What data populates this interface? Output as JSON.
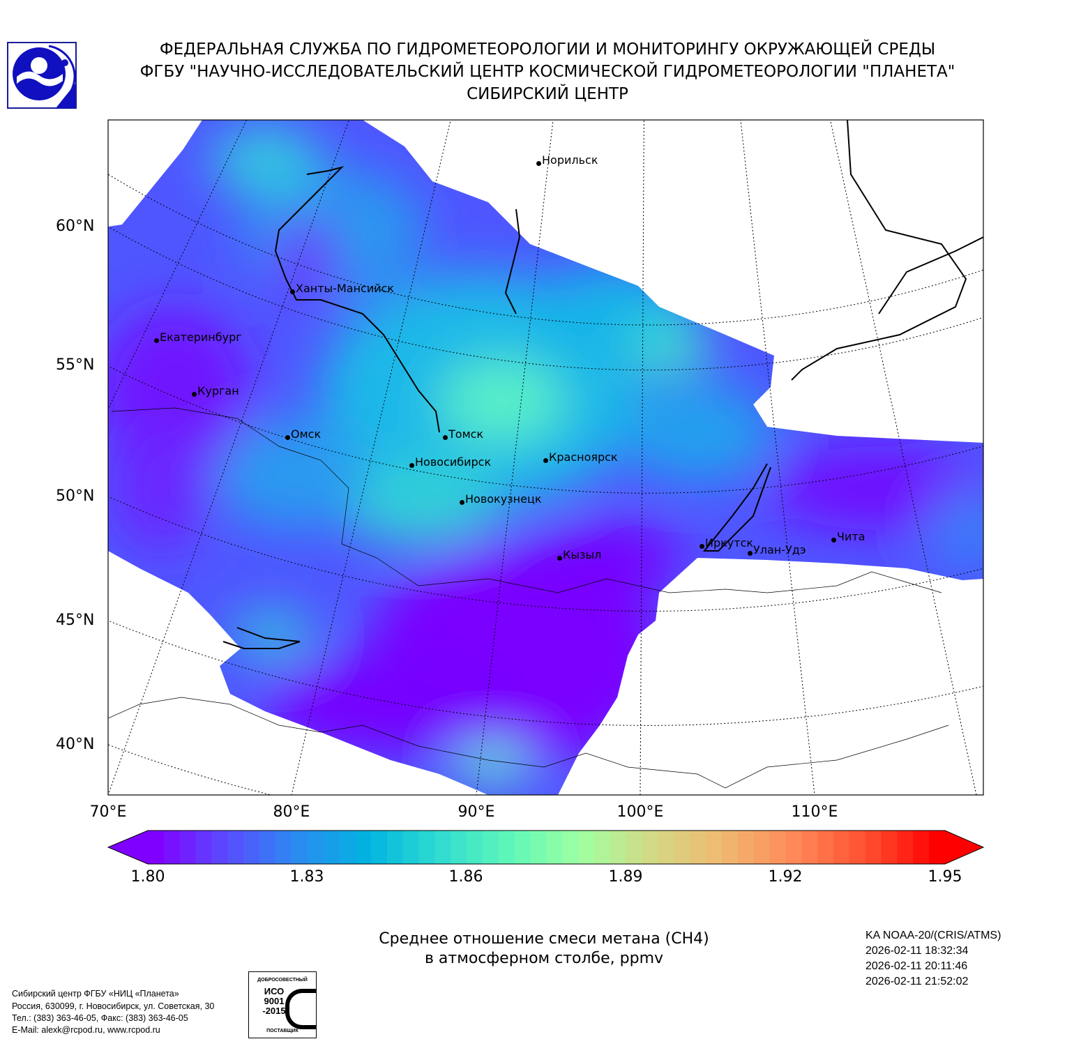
{
  "header": {
    "line1": "ФЕДЕРАЛЬНАЯ СЛУЖБА ПО ГИДРОМЕТЕОРОЛОГИИ И МОНИТОРИНГУ ОКРУЖАЮЩЕЙ СРЕДЫ",
    "line2": "ФГБУ \"НАУЧНО-ИССЛЕДОВАТЕЛЬСКИЙ ЦЕНТР КОСМИЧЕСКОЙ ГИДРОМЕТЕОРОЛОГИИ \"ПЛАНЕТА\"",
    "line3": "СИБИРСКИЙ ЦЕНТР",
    "logo_icon": "roshydromet-logo-icon"
  },
  "map": {
    "lat_labels": [
      "60°N",
      "55°N",
      "50°N",
      "45°N",
      "40°N"
    ],
    "lon_labels": [
      "70°E",
      "80°E",
      "90°E",
      "100°E",
      "110°E"
    ],
    "cities": [
      "Норильск",
      "Ханты-Мансийск",
      "Екатеринбург",
      "Курган",
      "Омск",
      "Томск",
      "Новосибирск",
      "Красноярск",
      "Новокузнецк",
      "Кызыл",
      "Иркутск",
      "Улан-Удэ",
      "Чита"
    ]
  },
  "colorbar": {
    "ticks": [
      "1.80",
      "1.83",
      "1.86",
      "1.89",
      "1.92",
      "1.95"
    ],
    "range": [
      1.8,
      1.95
    ],
    "extend": "both",
    "colors": [
      "#8000ff",
      "#5a4cff",
      "#2a8cf0",
      "#00b4e0",
      "#30dcd0",
      "#60f8b8",
      "#a0ffa0",
      "#d4d884",
      "#f0b870",
      "#ff8858",
      "#ff5030",
      "#ff0000"
    ]
  },
  "caption": {
    "line1": "Среднее отношение смеси метана (CH4)",
    "line2": "в атмосферном столбе, ppmv"
  },
  "satellite": {
    "name": "KA NOAA-20/(CRIS/ATMS)",
    "times": [
      "2026-02-11 18:32:34",
      "2026-02-11 20:11:46",
      "2026-02-11 21:52:02"
    ]
  },
  "footer": {
    "lines": [
      "Сибирский центр ФГБУ «НИЦ «Планета»",
      "Россия, 630099, г. Новосибирск, ул. Советская, 30",
      "Тел.: (383) 363-46-05, Факс: (383) 363-46-05",
      "E-Mail: alexk@rcpod.ru, www.rcpod.ru"
    ],
    "iso_badge": {
      "top": "ДОБРОСОВЕСТНЫЙ",
      "mid": "ИСО 9001 -2015",
      "bottom": "ПОСТАВЩИК"
    }
  }
}
